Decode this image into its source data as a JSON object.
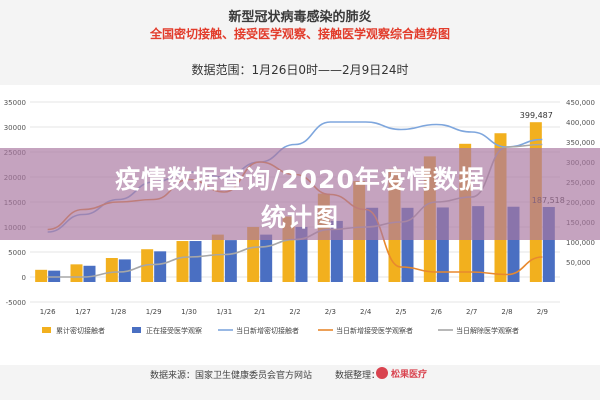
{
  "header": {
    "title": "新型冠状病毒感染的肺炎",
    "subtitle": "全国密切接触、接受医学观察、接触医学观察综合趋势图",
    "range_label": "数据范围：1月26日0时——2月9日24时"
  },
  "overlay": {
    "line1": "疫情数据查询/2020年疫情数据",
    "line2": "统计图"
  },
  "footer": {
    "source": "数据来源：国家卫生健康委员会官方网站",
    "organizer": "数据整理：",
    "logo_text": "松果医疗"
  },
  "colors": {
    "cumulative_bar": "#f2b01e",
    "observation_bar": "#4a6fc2",
    "new_close_contact_line": "#7ea6dd",
    "new_release_line": "#e8892e",
    "new_released_line": "#a7a7a7",
    "overlay_tint": "#aa78a0"
  },
  "chart_data": {
    "type": "bar",
    "categories": [
      "1/26",
      "1/27",
      "1/28",
      "1/29",
      "1/30",
      "1/31",
      "2/1",
      "2/2",
      "2/3",
      "2/4",
      "2/5",
      "2/6",
      "2/7",
      "2/8",
      "2/9"
    ],
    "series": [
      {
        "name": "累计密切接触者",
        "axis": "right",
        "values": [
          30453,
          44132,
          59990,
          81947,
          102427,
          118478,
          137594,
          163844,
          221015,
          252154,
          282813,
          314028,
          345498,
          371905,
          399487
        ]
      },
      {
        "name": "正在接受医学观察",
        "axis": "right",
        "values": [
          28429,
          40563,
          56485,
          76700,
          102427,
          104727,
          118478,
          137594,
          152700,
          185555,
          185500,
          186354,
          189660,
          188183,
          187518
        ]
      },
      {
        "name": "当日新增密切接触者",
        "axis": "left",
        "values": [
          9000,
          12500,
          15500,
          19000,
          21000,
          20000,
          23000,
          26500,
          31000,
          31000,
          29500,
          30500,
          29000,
          26000,
          27500
        ]
      },
      {
        "name": "当日新增接受医学观察者",
        "axis": "left",
        "values": [
          9500,
          13500,
          15000,
          15500,
          19500,
          17000,
          23000,
          20500,
          16500,
          13500,
          2000,
          1000,
          1000,
          500,
          4000
        ]
      },
      {
        "name": "当日解除医学观察者",
        "axis": "left",
        "values": [
          0,
          0,
          1000,
          2500,
          4000,
          4500,
          6000,
          7500,
          9500,
          10000,
          11000,
          15000,
          16000,
          26000,
          26500
        ]
      }
    ],
    "y_left": {
      "min": -5000,
      "max": 35000,
      "ticks": [
        "-5000",
        "0",
        "5000",
        "10000",
        "15000",
        "20000",
        "25000",
        "30000",
        "35000"
      ]
    },
    "y_right": {
      "min": -50000,
      "max": 450000,
      "ticks": [
        "-50,000",
        "0",
        "50,000",
        "100,000",
        "150,000",
        "200,000",
        "250,000",
        "300,000",
        "350,000",
        "400,000",
        "450,000"
      ]
    },
    "visible_right_ticks": [
      "50,000",
      "100,000",
      "150,000",
      "200,000",
      "250,000",
      "300,000",
      "350,000",
      "400,000",
      "450,000"
    ],
    "visible_left_ticks": [
      "-5000",
      "0",
      "5000",
      "10000",
      "15000",
      "20000",
      "25000",
      "30000",
      "35000"
    ],
    "data_labels": [
      {
        "series": "累计密切接触者",
        "category": "2/9",
        "text": "399,487"
      },
      {
        "series": "正在接受医学观察",
        "category": "2/9",
        "text": "187,518"
      }
    ],
    "legend": [
      "累计密切接触者",
      "正在接受医学观察",
      "当日新增密切接触者",
      "当日新增接受医学观察者",
      "当日解除医学观察者"
    ],
    "legend_position": "bottom",
    "grid": true
  }
}
